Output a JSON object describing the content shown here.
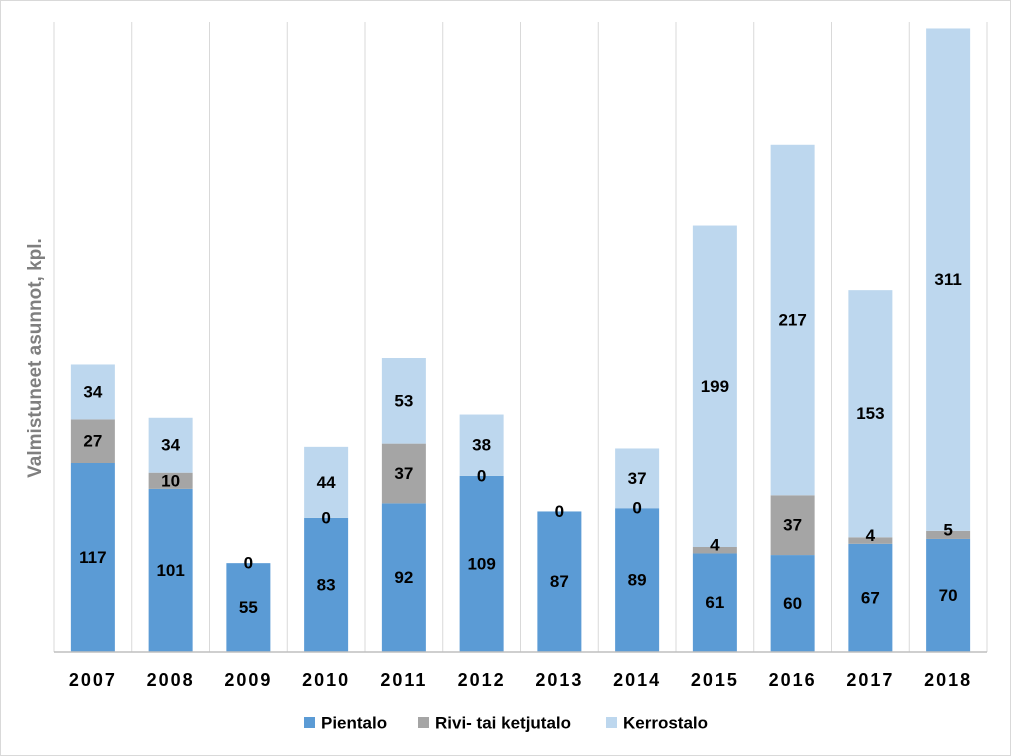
{
  "chart_data": {
    "type": "bar",
    "stacked": true,
    "title": "",
    "xlabel": "",
    "ylabel": "Valmistuneet asunnot, kpl.",
    "categories": [
      "2007",
      "2008",
      "2009",
      "2010",
      "2011",
      "2012",
      "2013",
      "2014",
      "2015",
      "2016",
      "2017",
      "2018"
    ],
    "ylim": [
      0,
      390
    ],
    "grid": "vertical",
    "legend_position": "bottom",
    "series": [
      {
        "name": "Pientalo",
        "color": "#5b9bd5",
        "values": [
          117,
          101,
          55,
          83,
          92,
          109,
          87,
          89,
          61,
          60,
          67,
          70
        ]
      },
      {
        "name": "Rivi- tai ketjutalo",
        "color": "#a5a5a5",
        "values": [
          27,
          10,
          0,
          0,
          37,
          0,
          0,
          0,
          4,
          37,
          4,
          5
        ]
      },
      {
        "name": "Kerrostalo",
        "color": "#bdd7ee",
        "values": [
          34,
          34,
          0,
          44,
          53,
          38,
          0,
          37,
          199,
          217,
          153,
          311
        ]
      }
    ],
    "data_labels": [
      [
        "117",
        "101",
        "55",
        "83",
        "92",
        "109",
        "87",
        "89",
        "61",
        "60",
        "67",
        "70"
      ],
      [
        "27",
        "10",
        "0",
        "0",
        "37",
        "0",
        "0",
        "0",
        "4",
        "37",
        "4",
        "5"
      ],
      [
        "34",
        "34",
        "",
        "44",
        "53",
        "38",
        "",
        "37",
        "199",
        "217",
        "153",
        "311"
      ]
    ]
  }
}
